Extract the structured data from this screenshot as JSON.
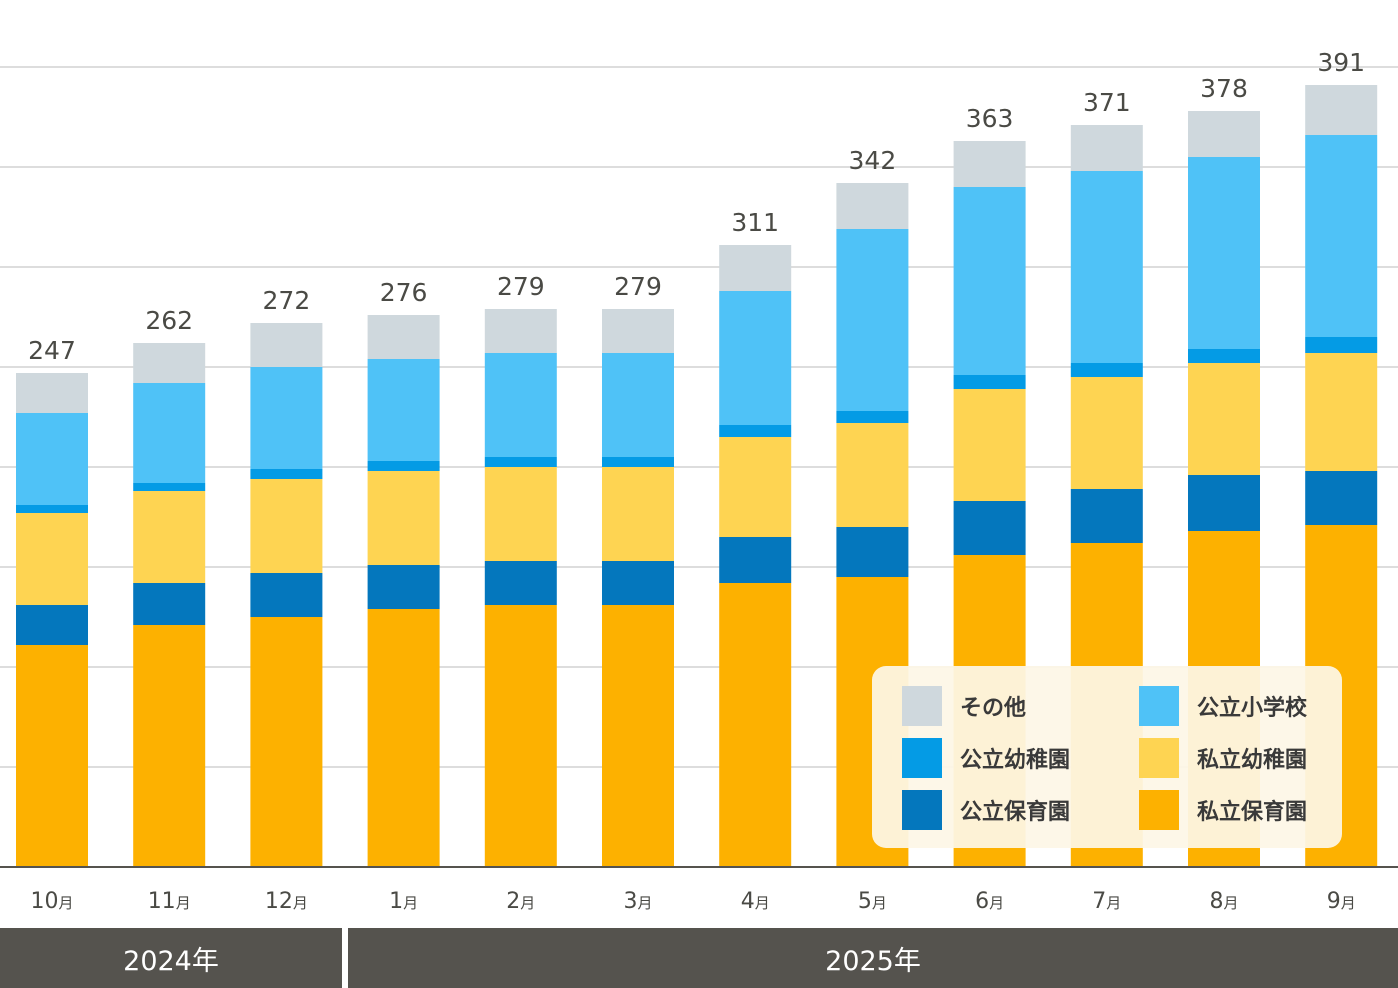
{
  "chart_data": {
    "type": "bar",
    "stacked": true,
    "title": "",
    "xlabel": "",
    "ylabel": "",
    "ylim": [
      0,
      400
    ],
    "ygrid_step": 50,
    "grid": true,
    "y_tick_labels_visible": false,
    "legend_position": "bottom-right",
    "categories": [
      "10月",
      "11月",
      "12月",
      "1月",
      "2月",
      "3月",
      "4月",
      "5月",
      "6月",
      "7月",
      "8月",
      "9月"
    ],
    "year_groups": [
      {
        "label": "2024年",
        "start_index": 0,
        "end_index": 2
      },
      {
        "label": "2025年",
        "start_index": 3,
        "end_index": 11
      }
    ],
    "totals": [
      247,
      262,
      272,
      276,
      279,
      279,
      311,
      342,
      363,
      371,
      378,
      391
    ],
    "series": [
      {
        "name": "私立保育園",
        "color": "#fdb100",
        "values": [
          111,
          121,
          125,
          129,
          131,
          131,
          142,
          145,
          156,
          162,
          168,
          171
        ]
      },
      {
        "name": "公立保育園",
        "color": "#0477bd",
        "values": [
          20,
          21,
          22,
          22,
          22,
          22,
          23,
          25,
          27,
          27,
          28,
          27
        ]
      },
      {
        "name": "私立幼稚園",
        "color": "#fed452",
        "values": [
          46,
          46,
          47,
          47,
          47,
          47,
          50,
          52,
          56,
          56,
          56,
          59
        ]
      },
      {
        "name": "公立幼稚園",
        "color": "#049be5",
        "values": [
          4,
          4,
          5,
          5,
          5,
          5,
          6,
          6,
          7,
          7,
          7,
          8
        ]
      },
      {
        "name": "公立小学校",
        "color": "#4fc2f7",
        "values": [
          46,
          50,
          51,
          51,
          52,
          52,
          67,
          91,
          94,
          96,
          96,
          101
        ]
      },
      {
        "name": "その他",
        "color": "#cfd8dd",
        "values": [
          20,
          20,
          22,
          22,
          22,
          22,
          23,
          23,
          23,
          23,
          23,
          25
        ]
      }
    ]
  },
  "legend": {
    "items": [
      {
        "label": "その他",
        "color": "#cfd8dd"
      },
      {
        "label": "公立小学校",
        "color": "#4fc2f7"
      },
      {
        "label": "公立幼稚園",
        "color": "#049be5"
      },
      {
        "label": "私立幼稚園",
        "color": "#fed452"
      },
      {
        "label": "公立保育園",
        "color": "#0477bd"
      },
      {
        "label": "私立保育園",
        "color": "#fdb100"
      }
    ]
  },
  "colors": {
    "grid": "#dddddd",
    "axis": "#55534e",
    "label_text": "#4a4a45",
    "year_band": "#55534e"
  }
}
